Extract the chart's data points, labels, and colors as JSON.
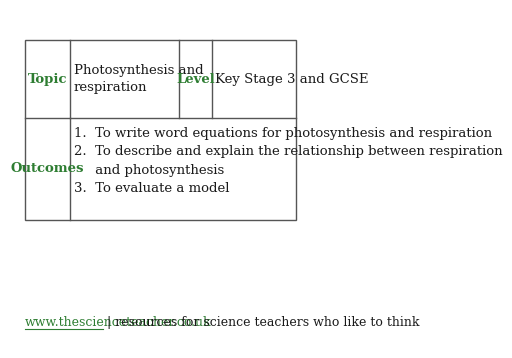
{
  "background_color": "#ffffff",
  "green_color": "#2e7d32",
  "black_color": "#1a1a1a",
  "border_color": "#555555",
  "header_col1_label": "Topic",
  "header_col2_text": "Photosynthesis and\nrespiration",
  "header_col3_label": "Level",
  "header_col4_text": "Key Stage 3 and GCSE",
  "outcomes_label": "Outcomes",
  "outcomes_text": "1.  To write word equations for photosynthesis and respiration\n2.  To describe and explain the relationship between respiration\n     and photosynthesis\n3.  To evaluate a model",
  "footer_link": "www.thescienceteacher.co.uk",
  "footer_text": " | resources for science teachers who like to think",
  "footer_color": "#2e7d32",
  "footer_text_color": "#1a1a1a",
  "font_size_header": 9.5,
  "font_size_body": 9.5,
  "font_size_footer": 9.0
}
